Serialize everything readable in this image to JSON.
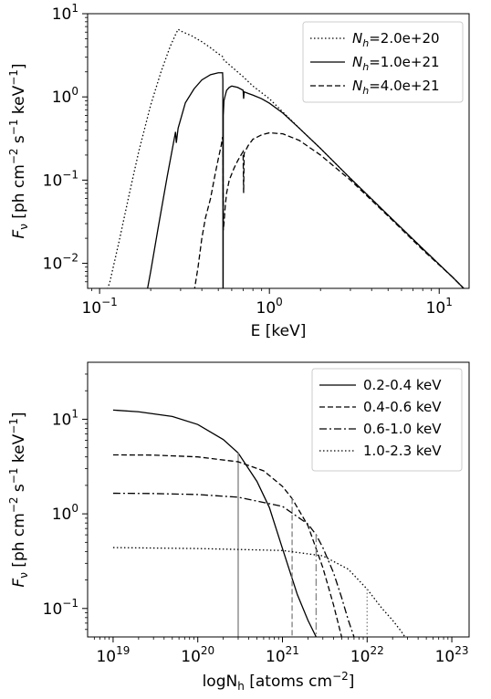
{
  "chart_data": [
    {
      "type": "line",
      "xscale": "log",
      "yscale": "log",
      "xlim": [
        0.085,
        15
      ],
      "ylim": [
        0.005,
        10
      ],
      "xlabel": "E [keV]",
      "ylabel": "F_ν [ph cm^-2 s^-1 keV^-1]",
      "ylabel_parts": {
        "f": "F",
        "nu": "ν",
        "rest": " [ph cm",
        "e1": "−2",
        "s": " s",
        "e2": "−1",
        "kev": " keV",
        "e3": "−1",
        "close": "]"
      },
      "xticks": [
        {
          "value": 0.1,
          "base": "10",
          "exp": "−1"
        },
        {
          "value": 1,
          "base": "10",
          "exp": "0"
        },
        {
          "value": 10,
          "base": "10",
          "exp": "1"
        }
      ],
      "yticks": [
        {
          "value": 0.01,
          "base": "10",
          "exp": "−2"
        },
        {
          "value": 0.1,
          "base": "10",
          "exp": "−1"
        },
        {
          "value": 1,
          "base": "10",
          "exp": "0"
        },
        {
          "value": 10,
          "base": "10",
          "exp": "1"
        }
      ],
      "legend_position": "upper right",
      "series": [
        {
          "name": "N_h=2.0e+20",
          "label_parts": {
            "n": "N",
            "sub": "h",
            "val": "=2.0e+20"
          },
          "style": "dotted",
          "x": [
            0.1,
            0.115,
            0.13,
            0.15,
            0.17,
            0.2,
            0.23,
            0.26,
            0.28,
            0.29,
            0.3,
            0.35,
            0.4,
            0.45,
            0.5,
            0.53,
            0.54,
            0.56,
            0.6,
            0.7,
            0.8,
            1.0,
            1.5,
            2.0,
            3.0,
            5.0,
            8.0,
            12.0,
            15.0
          ],
          "y": [
            0.0025,
            0.006,
            0.018,
            0.07,
            0.22,
            0.8,
            2.0,
            4.0,
            5.6,
            6.5,
            6.2,
            5.4,
            4.6,
            3.9,
            3.3,
            3.05,
            2.75,
            2.6,
            2.3,
            1.75,
            1.35,
            0.95,
            0.42,
            0.24,
            0.105,
            0.038,
            0.015,
            0.0068,
            0.0043
          ]
        },
        {
          "name": "N_h=1.0e+21",
          "label_parts": {
            "n": "N",
            "sub": "h",
            "val": "=1.0e+21"
          },
          "style": "solid",
          "x": [
            0.18,
            0.2,
            0.22,
            0.25,
            0.28,
            0.283,
            0.29,
            0.32,
            0.36,
            0.4,
            0.45,
            0.5,
            0.53,
            0.532,
            0.533,
            0.534,
            0.535,
            0.54,
            0.55,
            0.56,
            0.58,
            0.6,
            0.65,
            0.7,
            0.705,
            0.71,
            0.75,
            0.8,
            0.9,
            1.0,
            1.2,
            1.5,
            2.0,
            3.0,
            5.0,
            8.0,
            12.0,
            15.0
          ],
          "y": [
            0.0025,
            0.008,
            0.025,
            0.11,
            0.38,
            0.28,
            0.42,
            0.85,
            1.25,
            1.6,
            1.85,
            1.95,
            1.95,
            1.6,
            0.004,
            0.004,
            0.6,
            0.9,
            1.05,
            1.2,
            1.3,
            1.35,
            1.3,
            1.2,
            0.95,
            1.15,
            1.1,
            1.05,
            0.95,
            0.84,
            0.64,
            0.42,
            0.24,
            0.105,
            0.038,
            0.015,
            0.0068,
            0.0043
          ]
        },
        {
          "name": "N_h=4.0e+21",
          "label_parts": {
            "n": "N",
            "sub": "h",
            "val": "=4.0e+21"
          },
          "style": "dashed",
          "x": [
            0.36,
            0.38,
            0.4,
            0.42,
            0.45,
            0.48,
            0.5,
            0.52,
            0.53,
            0.533,
            0.535,
            0.54,
            0.55,
            0.56,
            0.58,
            0.62,
            0.65,
            0.68,
            0.7,
            0.705,
            0.71,
            0.75,
            0.8,
            0.9,
            1.0,
            1.2,
            1.5,
            2.0,
            3.0,
            5.0,
            8.0,
            12.0,
            15.0
          ],
          "y": [
            0.0045,
            0.009,
            0.02,
            0.035,
            0.06,
            0.12,
            0.18,
            0.26,
            0.33,
            0.22,
            0.025,
            0.03,
            0.05,
            0.07,
            0.1,
            0.14,
            0.17,
            0.2,
            0.22,
            0.07,
            0.21,
            0.26,
            0.31,
            0.35,
            0.37,
            0.36,
            0.3,
            0.2,
            0.1,
            0.037,
            0.0145,
            0.0068,
            0.0043
          ]
        }
      ]
    },
    {
      "type": "line",
      "xscale": "log",
      "yscale": "log",
      "xlim": [
        5e+18,
        1.6e+23
      ],
      "ylim": [
        0.05,
        40
      ],
      "xlabel": "logN_h [atoms cm^-2]",
      "xlabel_parts": {
        "a": "logN",
        "sub": "h",
        "b": " [atoms cm",
        "exp": "−2",
        "c": "]"
      },
      "ylabel": "F_ν [ph cm^-2 s^-1 keV^-1]",
      "ylabel_parts": {
        "f": "F",
        "nu": "ν",
        "rest": " [ph cm",
        "e1": "−2",
        "s": " s",
        "e2": "−1",
        "kev": " keV",
        "e3": "−1",
        "close": "]"
      },
      "xticks": [
        {
          "value": 1e+19,
          "base": "10",
          "exp": "19"
        },
        {
          "value": 1e+20,
          "base": "10",
          "exp": "20"
        },
        {
          "value": 1e+21,
          "base": "10",
          "exp": "21"
        },
        {
          "value": 1e+22,
          "base": "10",
          "exp": "22"
        },
        {
          "value": 1e+23,
          "base": "10",
          "exp": "23"
        }
      ],
      "yticks": [
        {
          "value": 0.1,
          "base": "10",
          "exp": "−1"
        },
        {
          "value": 1,
          "base": "10",
          "exp": "0"
        },
        {
          "value": 10,
          "base": "10",
          "exp": "1"
        }
      ],
      "legend_position": "upper right",
      "series": [
        {
          "name": "0.2-0.4 keV",
          "style": "solid",
          "x": [
            1e+19,
            2e+19,
            5e+19,
            1e+20,
            2e+20,
            3e+20,
            5e+20,
            7e+20,
            1e+21,
            1.5e+21,
            2e+21,
            2.5e+21
          ],
          "y": [
            12.5,
            12.0,
            10.7,
            8.8,
            6.1,
            4.4,
            2.2,
            1.17,
            0.43,
            0.14,
            0.075,
            0.05
          ],
          "marker_x": 3e+20,
          "marker_y": 4.4
        },
        {
          "name": "0.4-0.6 keV",
          "style": "dashed",
          "x": [
            1e+19,
            3e+19,
            1e+20,
            3e+20,
            6e+20,
            1e+21,
            1.3e+21,
            2e+21,
            3e+21,
            4e+21,
            5e+21
          ],
          "y": [
            4.2,
            4.18,
            4.0,
            3.55,
            2.85,
            1.95,
            1.45,
            0.75,
            0.27,
            0.11,
            0.05
          ],
          "marker_x": 1.3e+21,
          "marker_y": 1.45
        },
        {
          "name": "0.6-1.0 keV",
          "style": "dashdot",
          "x": [
            1e+19,
            3e+19,
            1e+20,
            3e+20,
            1e+21,
            2e+21,
            2.5e+21,
            3e+21,
            4e+21,
            5e+21,
            6e+21,
            7e+21
          ],
          "y": [
            1.65,
            1.64,
            1.6,
            1.5,
            1.2,
            0.78,
            0.6,
            0.44,
            0.24,
            0.13,
            0.075,
            0.05
          ],
          "marker_x": 2.5e+21,
          "marker_y": 0.6
        },
        {
          "name": "1.0-2.3 keV",
          "style": "dotted",
          "x": [
            1e+19,
            1e+20,
            1e+21,
            3e+21,
            6e+21,
            1e+22,
            1.5e+22,
            2e+22,
            2.5e+22,
            2.8e+22
          ],
          "y": [
            0.44,
            0.43,
            0.41,
            0.36,
            0.26,
            0.16,
            0.1,
            0.075,
            0.058,
            0.05
          ],
          "marker_x": 1e+22,
          "marker_y": 0.16
        }
      ]
    }
  ]
}
